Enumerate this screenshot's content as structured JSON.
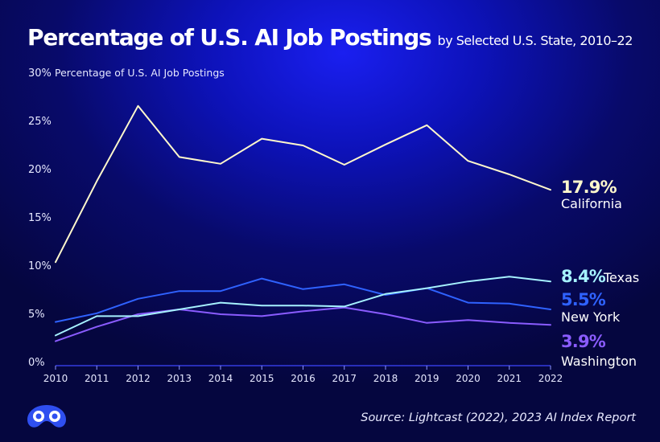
{
  "header": {
    "title": "Percentage of U.S. AI Job Postings",
    "subtitle": "by Selected U.S. State, 2010–22"
  },
  "footer": {
    "source": "Source: Lightcast (2022), 2023 AI Index Report"
  },
  "logo": {
    "icon": "visual-capitalist-logo-icon",
    "color": "#2f4ff0"
  },
  "chart_data": {
    "type": "line",
    "ylabel": "Percentage of U.S. AI Job Postings",
    "ylim": [
      0,
      30
    ],
    "y_ticks": [
      {
        "value": 0,
        "label": "0%"
      },
      {
        "value": 5,
        "label": "5%"
      },
      {
        "value": 10,
        "label": "10%"
      },
      {
        "value": 15,
        "label": "15%"
      },
      {
        "value": 20,
        "label": "20%"
      },
      {
        "value": 25,
        "label": "25%"
      },
      {
        "value": 30,
        "label": "30%"
      }
    ],
    "x": [
      "2010",
      "2011",
      "2012",
      "2013",
      "2014",
      "2015",
      "2016",
      "2017",
      "2018",
      "2019",
      "2020",
      "2021",
      "2022"
    ],
    "grid": false,
    "legend": "end-of-line labels",
    "series": [
      {
        "name": "California",
        "color": "#fff8cc",
        "end_label": "17.9%",
        "values": [
          10.4,
          18.8,
          26.6,
          21.3,
          20.6,
          23.2,
          22.5,
          20.5,
          22.6,
          24.6,
          20.9,
          19.5,
          17.9
        ]
      },
      {
        "name": "Texas",
        "color": "#a6f2ff",
        "end_label": "8.4%",
        "values": [
          2.8,
          4.8,
          4.8,
          5.5,
          6.2,
          5.9,
          5.9,
          5.8,
          7.1,
          7.7,
          8.4,
          8.9,
          8.4
        ]
      },
      {
        "name": "New York",
        "color": "#2f62ff",
        "end_label": "5.5%",
        "values": [
          4.2,
          5.1,
          6.6,
          7.4,
          7.4,
          8.7,
          7.6,
          8.1,
          7.0,
          7.7,
          6.2,
          6.1,
          5.5
        ]
      },
      {
        "name": "Washington",
        "color": "#8a5cff",
        "end_label": "3.9%",
        "values": [
          2.2,
          3.7,
          5.0,
          5.5,
          5.0,
          4.8,
          5.3,
          5.7,
          5.0,
          4.1,
          4.4,
          4.1,
          3.9
        ]
      }
    ]
  }
}
